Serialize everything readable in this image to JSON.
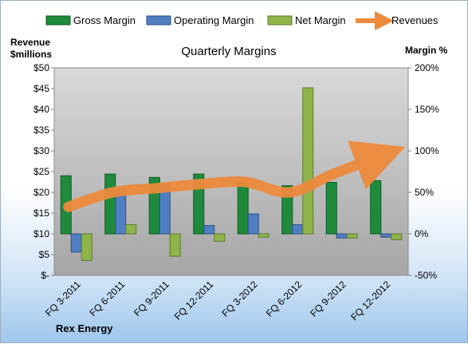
{
  "chart_data": {
    "type": "bar",
    "title": "Quarterly Margins",
    "company": "Rex Energy",
    "left_axis_label": [
      "Revenue",
      "$millions"
    ],
    "right_axis_label": "Margin %",
    "left_axis": {
      "min": 0,
      "max": 50,
      "step": 5,
      "tick_labels": [
        "$-",
        "$5",
        "$10",
        "$15",
        "$20",
        "$25",
        "$30",
        "$35",
        "$40",
        "$45",
        "$50"
      ]
    },
    "right_axis": {
      "min": -50,
      "max": 200,
      "step": 50,
      "tick_labels": [
        "-50%",
        "0%",
        "50%",
        "100%",
        "150%",
        "200%"
      ]
    },
    "categories": [
      "FQ 3-2011",
      "FQ 6-2011",
      "FQ 9-2011",
      "FQ 12-2011",
      "FQ 3-2012",
      "FQ 6-2012",
      "FQ 9-2012",
      "FQ 12-2012"
    ],
    "series": [
      {
        "name": "Gross Margin",
        "type": "bar",
        "axis": "right",
        "color": "#1f8a3c",
        "values": [
          70,
          72,
          68,
          72,
          62,
          58,
          62,
          64
        ]
      },
      {
        "name": "Operating Margin",
        "type": "bar",
        "axis": "right",
        "color": "#4f7fc2",
        "values": [
          -22,
          54,
          60,
          10,
          24,
          11,
          -5,
          -4
        ]
      },
      {
        "name": "Net Margin",
        "type": "bar",
        "axis": "right",
        "color": "#8fb44a",
        "values": [
          -32,
          11,
          -27,
          -9,
          -4,
          176,
          -5,
          -7
        ]
      },
      {
        "name": "Revenues",
        "type": "line",
        "axis": "left",
        "color": "#ed8a3c",
        "values": [
          16.5,
          20.0,
          21.0,
          22.0,
          22.5,
          20.0,
          24.5,
          28.5
        ]
      }
    ],
    "grid": false,
    "legend_position": "top"
  }
}
